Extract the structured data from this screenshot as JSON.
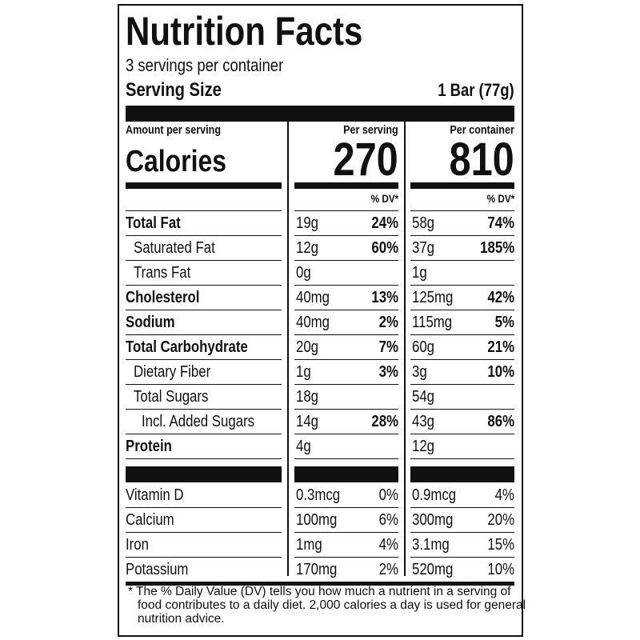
{
  "header": {
    "title": "Nutrition Facts",
    "servings": "3 servings per container",
    "serving_size_label": "Serving Size",
    "serving_size": "1 Bar (77g)"
  },
  "calories": {
    "amount_label": "Amount per serving",
    "label": "Calories",
    "per_serving_label": "Per serving",
    "per_serving": 270,
    "per_container_label": "Per container",
    "per_container": 810
  },
  "dv_header": {
    "serving": "% DV*",
    "container": "% DV*"
  },
  "nutrients": [
    {
      "name": "Total Fat",
      "bold": true,
      "indent": 0,
      "serving": "19g",
      "serving_dv": "24%",
      "container": "58g",
      "container_dv": "74%"
    },
    {
      "name": "Saturated Fat",
      "bold": false,
      "indent": 1,
      "serving": "12g",
      "serving_dv": "60%",
      "container": "37g",
      "container_dv": "185%"
    },
    {
      "name": "Trans Fat",
      "bold": false,
      "indent": 1,
      "serving": "0g",
      "serving_dv": null,
      "container": "1g",
      "container_dv": null
    },
    {
      "name": "Cholesterol",
      "bold": true,
      "indent": 0,
      "serving": "40mg",
      "serving_dv": "13%",
      "container": "125mg",
      "container_dv": "42%"
    },
    {
      "name": "Sodium",
      "bold": true,
      "indent": 0,
      "serving": "40mg",
      "serving_dv": "2%",
      "container": "115mg",
      "container_dv": "5%"
    },
    {
      "name": "Total Carbohydrate",
      "bold": true,
      "indent": 0,
      "serving": "20g",
      "serving_dv": "7%",
      "container": "60g",
      "container_dv": "21%"
    },
    {
      "name": "Dietary Fiber",
      "bold": false,
      "indent": 1,
      "serving": "1g",
      "serving_dv": "3%",
      "container": "3g",
      "container_dv": "10%"
    },
    {
      "name": "Total Sugars",
      "bold": false,
      "indent": 1,
      "serving": "18g",
      "serving_dv": null,
      "container": "54g",
      "container_dv": null
    },
    {
      "name": "Incl. Added Sugars",
      "bold": false,
      "indent": 2,
      "serving": "14g",
      "serving_dv": "28%",
      "container": "43g",
      "container_dv": "86%"
    },
    {
      "name": "Protein",
      "bold": true,
      "indent": 0,
      "serving": "4g",
      "serving_dv": null,
      "container": "12g",
      "container_dv": null
    }
  ],
  "vitamins": [
    {
      "name": "Vitamin D",
      "serving": "0.3mcg",
      "serving_dv": "0%",
      "container": "0.9mcg",
      "container_dv": "4%"
    },
    {
      "name": "Calcium",
      "serving": "100mg",
      "serving_dv": "6%",
      "container": "300mg",
      "container_dv": "20%"
    },
    {
      "name": "Iron",
      "serving": "1mg",
      "serving_dv": "4%",
      "container": "3.1mg",
      "container_dv": "15%"
    },
    {
      "name": "Potassium",
      "serving": "170mg",
      "serving_dv": "2%",
      "container": "520mg",
      "container_dv": "10%"
    }
  ],
  "footnote": "* The % Daily Value (DV) tells you how much a nutrient in a serving of food contributes to a daily diet. 2,000 calories a day is used for general nutrition advice."
}
